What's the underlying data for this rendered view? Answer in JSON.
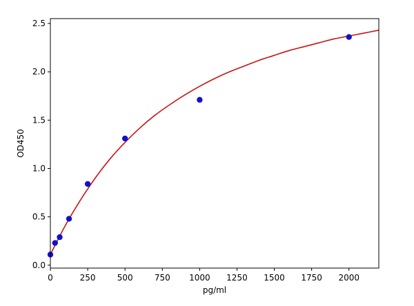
{
  "chart_data": {
    "type": "scatter",
    "title": "",
    "xlabel": "pg/ml",
    "ylabel": "OD450",
    "xlim": [
      0,
      2200
    ],
    "ylim": [
      -0.03,
      2.55
    ],
    "x_ticks": [
      0,
      250,
      500,
      750,
      1000,
      1250,
      1500,
      1750,
      2000
    ],
    "y_ticks": [
      0.0,
      0.5,
      1.0,
      1.5,
      2.0,
      2.5
    ],
    "x_tick_labels": [
      "0",
      "250",
      "500",
      "750",
      "1000",
      "1250",
      "1500",
      "1750",
      "2000"
    ],
    "y_tick_labels": [
      "0.0",
      "0.5",
      "1.0",
      "1.5",
      "2.0",
      "2.5"
    ],
    "grid": false,
    "legend": "none",
    "series": [
      {
        "kind": "points",
        "color": "#1010d0",
        "x": [
          0,
          31.25,
          62.5,
          125,
          250,
          500,
          1000,
          2000
        ],
        "y": [
          0.11,
          0.23,
          0.29,
          0.48,
          0.84,
          1.31,
          1.71,
          2.36
        ]
      },
      {
        "kind": "fitted-curve",
        "color": "#cc1111",
        "x": [
          0,
          100,
          200,
          300,
          400,
          500,
          600,
          700,
          800,
          900,
          1000,
          1100,
          1200,
          1300,
          1400,
          1500,
          1600,
          1700,
          1800,
          1900,
          2000,
          2100,
          2200
        ],
        "y": [
          0.11,
          0.41,
          0.67,
          0.9,
          1.1,
          1.27,
          1.42,
          1.55,
          1.66,
          1.76,
          1.85,
          1.93,
          2.0,
          2.06,
          2.12,
          2.17,
          2.22,
          2.26,
          2.3,
          2.34,
          2.37,
          2.4,
          2.43
        ]
      }
    ]
  }
}
